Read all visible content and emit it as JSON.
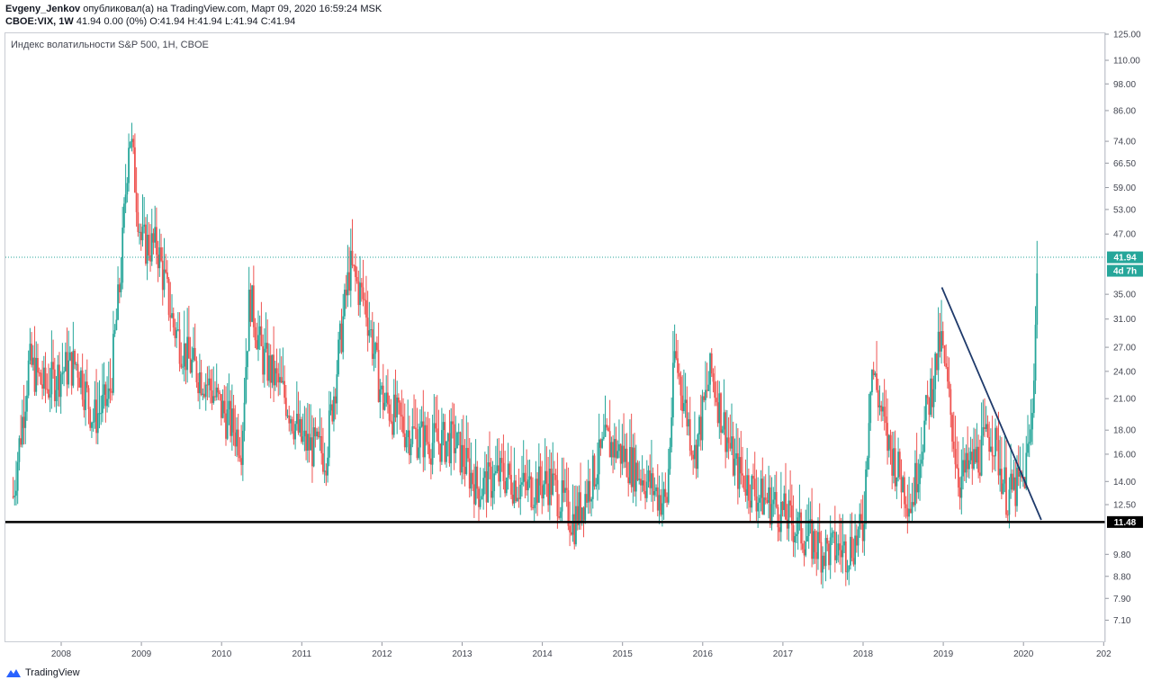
{
  "header": {
    "author": "Evgeny_Jenkov",
    "published_text": "опубликовал(а) на TradingView.com, Март 09, 2020 16:59:24 MSK",
    "symbol": "CBOE:VIX, 1W",
    "quote": "41.94 0.00 (0%) O:41.94 H:41.94 L:41.94 C:41.94"
  },
  "chart_title": "Индекс волатильности S&P 500, 1H, CBOE",
  "footer": {
    "brand": "TradingView"
  },
  "colors": {
    "up": "#26a69a",
    "down": "#ef5350",
    "support_line": "#000000",
    "trend_line": "#1f3a6b",
    "price_line": "#26a69a"
  },
  "chart_data": {
    "type": "candlestick",
    "title": "Индекс волатильности S&P 500, 1H, CBOE",
    "y_scale": "log",
    "y_ticks": [
      "125.00",
      "110.00",
      "98.00",
      "86.00",
      "74.00",
      "66.50",
      "59.00",
      "53.00",
      "47.00",
      "41.94",
      "35.00",
      "31.00",
      "27.00",
      "24.00",
      "21.00",
      "18.00",
      "16.00",
      "14.00",
      "12.50",
      "11.48",
      "9.80",
      "8.80",
      "7.90",
      "7.10"
    ],
    "x_ticks": [
      "2008",
      "2009",
      "2010",
      "2011",
      "2012",
      "2013",
      "2014",
      "2015",
      "2016",
      "2017",
      "2018",
      "2019",
      "2020",
      "202"
    ],
    "last_price": {
      "value": 41.94,
      "label": "41.94",
      "countdown": "4d 7h"
    },
    "support_level": {
      "value": 11.48,
      "label": "11.48"
    },
    "trend_line": {
      "start": {
        "date": "2018-12-24",
        "value": 36.2
      },
      "end": {
        "date": "2020-03-20",
        "value": 11.6
      }
    },
    "weekly_closes": [
      {
        "year": 2007.4,
        "close": 13.0
      },
      {
        "year": 2007.6,
        "close": 25.0
      },
      {
        "year": 2007.8,
        "close": 22.0
      },
      {
        "year": 2008.0,
        "close": 24.0
      },
      {
        "year": 2008.2,
        "close": 25.0
      },
      {
        "year": 2008.4,
        "close": 19.0
      },
      {
        "year": 2008.6,
        "close": 21.0
      },
      {
        "year": 2008.75,
        "close": 40.0
      },
      {
        "year": 2008.85,
        "close": 80.0
      },
      {
        "year": 2009.0,
        "close": 45.0
      },
      {
        "year": 2009.2,
        "close": 44.0
      },
      {
        "year": 2009.4,
        "close": 30.0
      },
      {
        "year": 2009.6,
        "close": 25.0
      },
      {
        "year": 2009.8,
        "close": 23.0
      },
      {
        "year": 2010.0,
        "close": 20.0
      },
      {
        "year": 2010.25,
        "close": 17.0
      },
      {
        "year": 2010.35,
        "close": 35.0
      },
      {
        "year": 2010.5,
        "close": 26.0
      },
      {
        "year": 2010.8,
        "close": 21.0
      },
      {
        "year": 2011.0,
        "close": 17.0
      },
      {
        "year": 2011.3,
        "close": 16.0
      },
      {
        "year": 2011.6,
        "close": 40.0
      },
      {
        "year": 2011.8,
        "close": 33.0
      },
      {
        "year": 2012.0,
        "close": 21.0
      },
      {
        "year": 2012.3,
        "close": 18.0
      },
      {
        "year": 2012.6,
        "close": 17.0
      },
      {
        "year": 2012.9,
        "close": 17.0
      },
      {
        "year": 2013.2,
        "close": 13.5
      },
      {
        "year": 2013.5,
        "close": 14.5
      },
      {
        "year": 2013.8,
        "close": 13.5
      },
      {
        "year": 2014.1,
        "close": 14.0
      },
      {
        "year": 2014.4,
        "close": 11.5
      },
      {
        "year": 2014.8,
        "close": 17.0
      },
      {
        "year": 2015.0,
        "close": 16.0
      },
      {
        "year": 2015.3,
        "close": 14.0
      },
      {
        "year": 2015.55,
        "close": 12.5
      },
      {
        "year": 2015.65,
        "close": 26.0
      },
      {
        "year": 2015.9,
        "close": 16.0
      },
      {
        "year": 2016.1,
        "close": 24.0
      },
      {
        "year": 2016.4,
        "close": 15.0
      },
      {
        "year": 2016.7,
        "close": 13.0
      },
      {
        "year": 2016.9,
        "close": 12.5
      },
      {
        "year": 2017.2,
        "close": 11.0
      },
      {
        "year": 2017.5,
        "close": 10.0
      },
      {
        "year": 2017.8,
        "close": 10.0
      },
      {
        "year": 2018.0,
        "close": 11.0
      },
      {
        "year": 2018.1,
        "close": 25.0
      },
      {
        "year": 2018.3,
        "close": 17.0
      },
      {
        "year": 2018.6,
        "close": 12.5
      },
      {
        "year": 2018.8,
        "close": 20.0
      },
      {
        "year": 2018.97,
        "close": 28.0
      },
      {
        "year": 2019.2,
        "close": 14.0
      },
      {
        "year": 2019.45,
        "close": 16.0
      },
      {
        "year": 2019.6,
        "close": 18.0
      },
      {
        "year": 2019.8,
        "close": 13.0
      },
      {
        "year": 2020.0,
        "close": 14.0
      },
      {
        "year": 2020.1,
        "close": 18.0
      },
      {
        "year": 2020.18,
        "close": 41.94
      }
    ]
  }
}
